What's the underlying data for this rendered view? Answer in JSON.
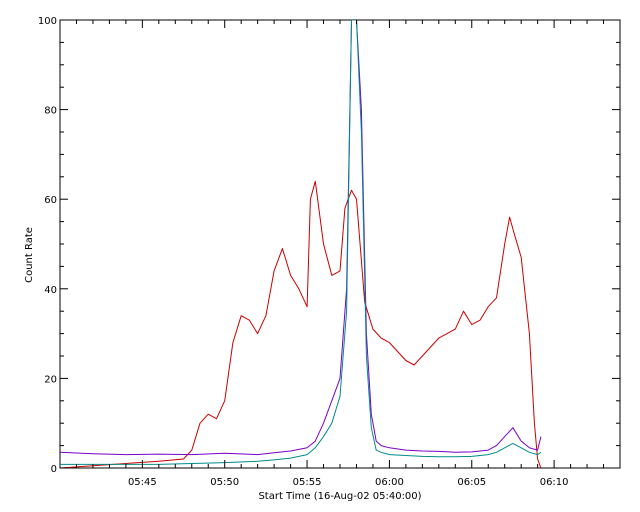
{
  "chart_data": {
    "type": "line",
    "xlabel": "Start Time (16-Aug-02 05:40:00)",
    "ylabel": "Count Rate",
    "xlim": [
      0,
      34
    ],
    "ylim": [
      0,
      100
    ],
    "x_units": "minutes after 05:40:00",
    "x_ticks": [
      {
        "value": 5,
        "label": "05:45"
      },
      {
        "value": 10,
        "label": "05:50"
      },
      {
        "value": 15,
        "label": "05:55"
      },
      {
        "value": 20,
        "label": "06:00"
      },
      {
        "value": 25,
        "label": "06:05"
      },
      {
        "value": 30,
        "label": "06:10"
      }
    ],
    "y_ticks": [
      0,
      20,
      40,
      60,
      80,
      100
    ],
    "grid": false,
    "series": [
      {
        "color": "#cc0000",
        "x": [
          0,
          2,
          4,
          6,
          7.5,
          8,
          8.5,
          9,
          9.5,
          10,
          10.5,
          11,
          11.5,
          12,
          12.5,
          13,
          13.5,
          14,
          14.5,
          15,
          15.2,
          15.5,
          16,
          16.5,
          17,
          17.3,
          17.7,
          18,
          18.5,
          19,
          19.5,
          20,
          20.5,
          21,
          21.5,
          22,
          22.5,
          23,
          23.5,
          24,
          24.5,
          25,
          25.5,
          26,
          26.5,
          27,
          27.3,
          27.6,
          28,
          28.5,
          28.8,
          29,
          29.2
        ],
        "y": [
          0,
          0.5,
          1,
          1.5,
          2,
          4,
          10,
          12,
          11,
          15,
          28,
          34,
          33,
          30,
          34,
          44,
          49,
          43,
          40,
          36,
          60,
          64,
          50,
          43,
          44,
          58,
          62,
          60,
          37,
          31,
          29,
          28,
          26,
          24,
          23,
          25,
          27,
          29,
          30,
          31,
          35,
          32,
          33,
          36,
          38,
          50,
          56,
          52,
          47,
          30,
          10,
          2,
          0
        ]
      },
      {
        "color": "#7a00c8",
        "x": [
          0,
          2,
          4,
          6,
          8,
          10,
          12,
          13,
          14,
          15,
          15.5,
          16,
          16.5,
          17,
          17.4,
          17.7,
          18,
          18.3,
          18.6,
          18.9,
          19.2,
          19.5,
          20,
          21,
          22,
          23,
          24,
          25,
          26,
          26.5,
          27,
          27.5,
          28,
          28.5,
          29,
          29.2
        ],
        "y": [
          3.5,
          3.2,
          3.0,
          3.1,
          3.0,
          3.3,
          3.0,
          3.4,
          3.8,
          4.5,
          6,
          10,
          15,
          20,
          40,
          100,
          100,
          80,
          30,
          12,
          6,
          5,
          4.5,
          4.0,
          3.8,
          3.7,
          3.5,
          3.6,
          4.0,
          5.0,
          7.0,
          9.0,
          6.0,
          4.5,
          4.0,
          7.0
        ]
      },
      {
        "color": "#008b8b",
        "x": [
          0,
          2,
          4,
          6,
          8,
          10,
          12,
          13,
          14,
          15,
          15.5,
          16,
          16.5,
          17,
          17.4,
          17.7,
          18,
          18.3,
          18.6,
          18.9,
          19.2,
          19.5,
          20,
          21,
          22,
          23,
          24,
          25,
          26,
          26.5,
          27,
          27.5,
          28,
          28.5,
          29,
          29.2
        ],
        "y": [
          0.8,
          0.8,
          0.8,
          0.8,
          1.0,
          1.2,
          1.5,
          1.8,
          2.2,
          3.0,
          4.5,
          7,
          10,
          16,
          35,
          100,
          100,
          75,
          25,
          9,
          4,
          3.5,
          3.0,
          2.8,
          2.6,
          2.5,
          2.5,
          2.6,
          3.0,
          3.5,
          4.5,
          5.5,
          4.5,
          3.5,
          3.0,
          3.5
        ]
      }
    ]
  }
}
